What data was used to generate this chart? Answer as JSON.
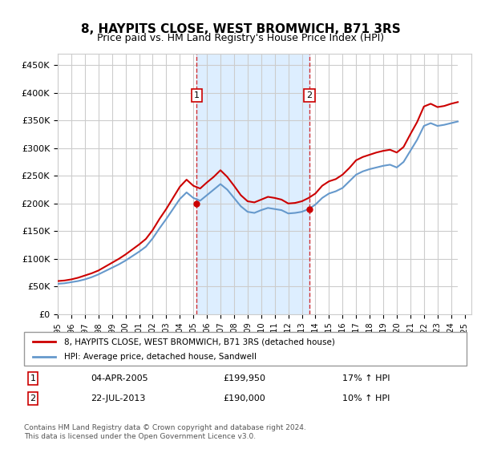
{
  "title": "8, HAYPITS CLOSE, WEST BROMWICH, B71 3RS",
  "subtitle": "Price paid vs. HM Land Registry's House Price Index (HPI)",
  "legend_line1": "8, HAYPITS CLOSE, WEST BROMWICH, B71 3RS (detached house)",
  "legend_line2": "HPI: Average price, detached house, Sandwell",
  "footnote": "Contains HM Land Registry data © Crown copyright and database right 2024.\nThis data is licensed under the Open Government Licence v3.0.",
  "sale1_label": "1",
  "sale1_date": "04-APR-2005",
  "sale1_price": "£199,950",
  "sale1_hpi": "17% ↑ HPI",
  "sale2_label": "2",
  "sale2_date": "22-JUL-2013",
  "sale2_price": "£190,000",
  "sale2_hpi": "10% ↑ HPI",
  "red_color": "#cc0000",
  "blue_color": "#6699cc",
  "shaded_color": "#ddeeff",
  "background_color": "#ffffff",
  "grid_color": "#cccccc",
  "ylim": [
    0,
    470000
  ],
  "yticks": [
    0,
    50000,
    100000,
    150000,
    200000,
    250000,
    300000,
    350000,
    400000,
    450000
  ],
  "xlim_start": 1995.0,
  "xlim_end": 2025.5,
  "sale1_x": 2005.25,
  "sale1_y": 199950,
  "sale2_x": 2013.55,
  "sale2_y": 190000,
  "hpi_years": [
    1995,
    1995.5,
    1996,
    1996.5,
    1997,
    1997.5,
    1998,
    1998.5,
    1999,
    1999.5,
    2000,
    2000.5,
    2001,
    2001.5,
    2002,
    2002.5,
    2003,
    2003.5,
    2004,
    2004.5,
    2005,
    2005.5,
    2006,
    2006.5,
    2007,
    2007.5,
    2008,
    2008.5,
    2009,
    2009.5,
    2010,
    2010.5,
    2011,
    2011.5,
    2012,
    2012.5,
    2013,
    2013.5,
    2014,
    2014.5,
    2015,
    2015.5,
    2016,
    2016.5,
    2017,
    2017.5,
    2018,
    2018.5,
    2019,
    2019.5,
    2020,
    2020.5,
    2021,
    2021.5,
    2022,
    2022.5,
    2023,
    2023.5,
    2024,
    2024.5
  ],
  "hpi_values": [
    55000,
    56000,
    58000,
    60000,
    63000,
    67000,
    72000,
    78000,
    84000,
    90000,
    97000,
    105000,
    113000,
    122000,
    137000,
    155000,
    172000,
    190000,
    208000,
    220000,
    210000,
    205000,
    215000,
    225000,
    235000,
    225000,
    210000,
    195000,
    185000,
    183000,
    188000,
    192000,
    190000,
    188000,
    182000,
    183000,
    185000,
    190000,
    198000,
    210000,
    218000,
    222000,
    228000,
    240000,
    252000,
    258000,
    262000,
    265000,
    268000,
    270000,
    265000,
    275000,
    295000,
    315000,
    340000,
    345000,
    340000,
    342000,
    345000,
    348000
  ],
  "price_years": [
    1995,
    1995.5,
    1996,
    1996.5,
    1997,
    1997.5,
    1998,
    1998.5,
    1999,
    1999.5,
    2000,
    2000.5,
    2001,
    2001.5,
    2002,
    2002.5,
    2003,
    2003.5,
    2004,
    2004.5,
    2005,
    2005.5,
    2006,
    2006.5,
    2007,
    2007.5,
    2008,
    2008.5,
    2009,
    2009.5,
    2010,
    2010.5,
    2011,
    2011.5,
    2012,
    2012.5,
    2013,
    2013.5,
    2014,
    2014.5,
    2015,
    2015.5,
    2016,
    2016.5,
    2017,
    2017.5,
    2018,
    2018.5,
    2019,
    2019.5,
    2020,
    2020.5,
    2021,
    2021.5,
    2022,
    2022.5,
    2023,
    2023.5,
    2024,
    2024.5
  ],
  "price_values": [
    60000,
    61000,
    63000,
    66000,
    70000,
    74000,
    79000,
    86000,
    93000,
    100000,
    108000,
    117000,
    126000,
    136000,
    152000,
    172000,
    190000,
    210000,
    230000,
    243000,
    232000,
    227000,
    238000,
    248000,
    260000,
    248000,
    232000,
    215000,
    204000,
    202000,
    207000,
    212000,
    210000,
    207000,
    200000,
    201000,
    204000,
    210000,
    218000,
    232000,
    240000,
    244000,
    252000,
    264000,
    278000,
    284000,
    288000,
    292000,
    295000,
    297000,
    292000,
    302000,
    325000,
    347000,
    375000,
    380000,
    374000,
    376000,
    380000,
    383000
  ]
}
